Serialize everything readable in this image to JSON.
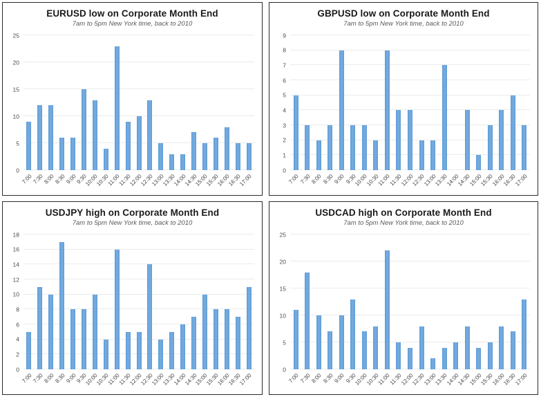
{
  "accent_color": "#5B9BD5",
  "gridline_color": "#E9EBEB",
  "chart_data": [
    {
      "type": "bar",
      "title": "EURUSD low on Corporate Month End",
      "subtitle": "7am to 5pm New York time, back to 2010",
      "categories": [
        "7:00",
        "7:30",
        "8:00",
        "8:30",
        "9:00",
        "9:30",
        "10:00",
        "10:30",
        "11:00",
        "11:30",
        "12:00",
        "12:30",
        "13:00",
        "13:30",
        "14:00",
        "14:30",
        "15:00",
        "15:30",
        "16:00",
        "16:30",
        "17:00"
      ],
      "values": [
        9,
        12,
        12,
        6,
        6,
        15,
        13,
        4,
        23,
        9,
        10,
        13,
        5,
        3,
        3,
        7,
        5,
        6,
        8,
        5,
        5
      ],
      "xlabel": "",
      "ylabel": "",
      "ylim": [
        0,
        25
      ],
      "ytick_step": 5,
      "grid": true,
      "legend": "none",
      "bar_color": "#5B9BD5"
    },
    {
      "type": "bar",
      "title": "GBPUSD low on Corporate Month End",
      "subtitle": "7am to 5pm New York time, back to 2010",
      "categories": [
        "7:00",
        "7:30",
        "8:00",
        "8:30",
        "9:00",
        "9:30",
        "10:00",
        "10:30",
        "11:00",
        "11:30",
        "12:00",
        "12:30",
        "13:00",
        "13:30",
        "14:00",
        "14:30",
        "15:00",
        "15:30",
        "16:00",
        "16:30",
        "17:00"
      ],
      "values": [
        5,
        3,
        2,
        3,
        8,
        3,
        3,
        2,
        8,
        4,
        4,
        2,
        2,
        7,
        0,
        4,
        1,
        3,
        4,
        5,
        3
      ],
      "xlabel": "",
      "ylabel": "",
      "ylim": [
        0,
        9
      ],
      "ytick_step": 1,
      "grid": true,
      "legend": "none",
      "bar_color": "#5B9BD5"
    },
    {
      "type": "bar",
      "title": "USDJPY high on Corporate Month End",
      "subtitle": "7am to 5pm New York time, back to 2010",
      "categories": [
        "7:00",
        "7:30",
        "8:00",
        "8:30",
        "9:00",
        "9:30",
        "10:00",
        "10:30",
        "11:00",
        "11:30",
        "12:00",
        "12:30",
        "13:00",
        "13:30",
        "14:00",
        "14:30",
        "15:00",
        "15:30",
        "16:00",
        "16:30",
        "17:00"
      ],
      "values": [
        5,
        11,
        10,
        17,
        8,
        8,
        10,
        4,
        16,
        5,
        5,
        14,
        4,
        5,
        6,
        7,
        10,
        8,
        8,
        7,
        11
      ],
      "xlabel": "",
      "ylabel": "",
      "ylim": [
        0,
        18
      ],
      "ytick_step": 2,
      "grid": true,
      "legend": "none",
      "bar_color": "#5B9BD5"
    },
    {
      "type": "bar",
      "title": "USDCAD high on Corporate Month End",
      "subtitle": "7am to 5pm New York time, back to 2010",
      "categories": [
        "7:00",
        "7:30",
        "8:00",
        "8:30",
        "9:00",
        "9:30",
        "10:00",
        "10:30",
        "11:00",
        "11:30",
        "12:00",
        "12:30",
        "13:00",
        "13:30",
        "14:00",
        "14:30",
        "15:00",
        "15:30",
        "16:00",
        "16:30",
        "17:00"
      ],
      "values": [
        11,
        18,
        10,
        7,
        10,
        13,
        7,
        8,
        22,
        5,
        4,
        8,
        2,
        4,
        5,
        8,
        4,
        5,
        8,
        7,
        13
      ],
      "xlabel": "",
      "ylabel": "",
      "ylim": [
        0,
        25
      ],
      "ytick_step": 5,
      "grid": true,
      "legend": "none",
      "bar_color": "#5B9BD5"
    }
  ]
}
